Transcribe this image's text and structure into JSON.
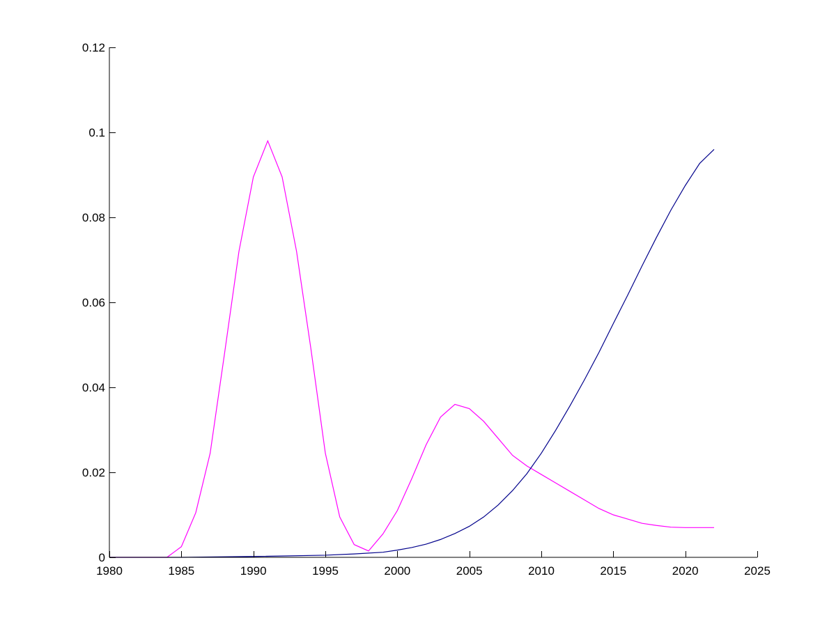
{
  "chart_data": {
    "type": "line",
    "title": "",
    "xlabel": "",
    "ylabel": "",
    "xlim": [
      1980,
      2025
    ],
    "ylim": [
      0,
      0.12
    ],
    "grid": false,
    "legend": "none",
    "x_ticks": [
      1980,
      1985,
      1990,
      1995,
      2000,
      2005,
      2010,
      2015,
      2020,
      2025
    ],
    "x_tick_labels": [
      "1980",
      "1985",
      "1990",
      "1995",
      "2000",
      "2005",
      "2010",
      "2015",
      "2020",
      "2025"
    ],
    "y_ticks": [
      0,
      0.02,
      0.04,
      0.06,
      0.08,
      0.1,
      0.12
    ],
    "y_tick_labels": [
      "0",
      "0.02",
      "0.04",
      "0.06",
      "0.08",
      "0.1",
      "0.12"
    ],
    "series": [
      {
        "color": "#ff00ff",
        "x": [
          1980,
          1981,
          1982,
          1983,
          1984,
          1985,
          1986,
          1987,
          1988,
          1989,
          1990,
          1991,
          1992,
          1993,
          1994,
          1995,
          1996,
          1997,
          1998,
          1999,
          2000,
          2001,
          2002,
          2003,
          2004,
          2005,
          2006,
          2007,
          2008,
          2009,
          2010,
          2011,
          2012,
          2013,
          2014,
          2015,
          2016,
          2017,
          2018,
          2019,
          2020,
          2021,
          2022
        ],
        "y": [
          0,
          0,
          0,
          0,
          0,
          0.0025,
          0.0105,
          0.0245,
          0.048,
          0.072,
          0.0895,
          0.098,
          0.0895,
          0.072,
          0.049,
          0.0245,
          0.0095,
          0.003,
          0.0015,
          0.0055,
          0.011,
          0.0185,
          0.0265,
          0.033,
          0.036,
          0.035,
          0.032,
          0.028,
          0.024,
          0.0215,
          0.0195,
          0.0175,
          0.0155,
          0.0135,
          0.0115,
          0.01,
          0.009,
          0.008,
          0.0075,
          0.0071,
          0.007,
          0.007,
          0.007
        ]
      },
      {
        "color": "#00008b",
        "x": [
          1980,
          1985,
          1990,
          1995,
          1997,
          1999,
          2000,
          2001,
          2002,
          2003,
          2004,
          2005,
          2006,
          2007,
          2008,
          2009,
          2010,
          2011,
          2012,
          2013,
          2014,
          2015,
          2016,
          2017,
          2018,
          2019,
          2020,
          2021,
          2022
        ],
        "y": [
          0,
          0,
          0.0002,
          0.0005,
          0.0008,
          0.0012,
          0.0017,
          0.0023,
          0.0031,
          0.0042,
          0.0056,
          0.0073,
          0.0095,
          0.0123,
          0.0157,
          0.0197,
          0.0245,
          0.0299,
          0.0357,
          0.0418,
          0.0482,
          0.055,
          0.0617,
          0.0686,
          0.0753,
          0.0817,
          0.0875,
          0.0927,
          0.096
        ]
      }
    ]
  }
}
